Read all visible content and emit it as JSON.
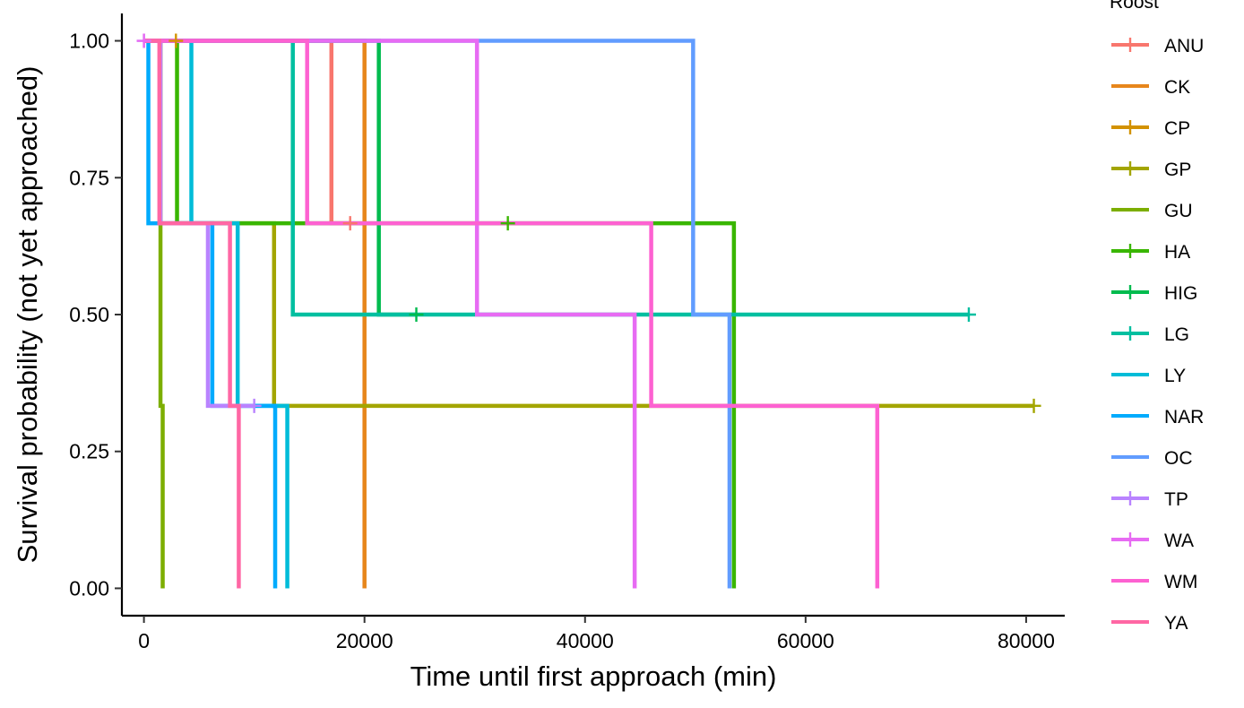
{
  "chart_data": {
    "type": "line",
    "subtype": "step",
    "title": "",
    "xlabel": "Time until first approach (min)",
    "ylabel": "Survival probability (not yet approached)",
    "xlim": [
      -2000,
      83500
    ],
    "ylim": [
      -0.05,
      1.05
    ],
    "xticks": [
      0,
      20000,
      40000,
      60000,
      80000
    ],
    "xtick_labels": [
      "0",
      "20000",
      "40000",
      "60000",
      "80000"
    ],
    "yticks": [
      0,
      0.25,
      0.5,
      0.75,
      1.0
    ],
    "ytick_labels": [
      "0.00",
      "0.25",
      "0.50",
      "0.75",
      "1.00"
    ],
    "grid": false,
    "legend": {
      "title": "Roost",
      "position": "right"
    },
    "series": [
      {
        "name": "ANU",
        "color": "#F8766D",
        "steps": [
          [
            0,
            1
          ],
          [
            17000,
            0.6667
          ]
        ],
        "end": 18700,
        "censors": [
          [
            18700,
            0.6667
          ]
        ]
      },
      {
        "name": "CK",
        "color": "#E7861B",
        "steps": [
          [
            0,
            1
          ],
          [
            20000,
            0
          ]
        ],
        "end": 20000,
        "censors": []
      },
      {
        "name": "CP",
        "color": "#D39200",
        "steps": [
          [
            0,
            1
          ]
        ],
        "end": 2900,
        "censors": [
          [
            2900,
            1
          ]
        ]
      },
      {
        "name": "GP",
        "color": "#A3A500",
        "steps": [
          [
            0,
            1
          ],
          [
            1500,
            0.6667
          ],
          [
            11800,
            0.3333
          ]
        ],
        "end": 80700,
        "censors": [
          [
            80700,
            0.3333
          ]
        ]
      },
      {
        "name": "GU",
        "color": "#7CAE00",
        "steps": [
          [
            0,
            1
          ],
          [
            1500,
            0.6667
          ],
          [
            1500,
            0.3333
          ],
          [
            1700,
            0
          ]
        ],
        "end": 1700,
        "censors": []
      },
      {
        "name": "HA",
        "color": "#39B600",
        "steps": [
          [
            0,
            1
          ],
          [
            3000,
            0.6667
          ],
          [
            53500,
            0
          ]
        ],
        "end": 53500,
        "censors": [
          [
            33000,
            0.6667
          ]
        ]
      },
      {
        "name": "HIG",
        "color": "#00BB4E",
        "steps": [
          [
            0,
            1
          ],
          [
            21300,
            0.5
          ]
        ],
        "end": 24700,
        "censors": [
          [
            24700,
            0.5
          ]
        ]
      },
      {
        "name": "LG",
        "color": "#00BFA0",
        "steps": [
          [
            0,
            1
          ],
          [
            13500,
            0.5
          ]
        ],
        "end": 74800,
        "censors": [
          [
            74800,
            0.5
          ]
        ]
      },
      {
        "name": "LY",
        "color": "#00BCD8",
        "steps": [
          [
            0,
            1
          ],
          [
            4300,
            0.6667
          ],
          [
            8500,
            0.3333
          ],
          [
            13000,
            0
          ]
        ],
        "end": 13000,
        "censors": []
      },
      {
        "name": "NAR",
        "color": "#00ABFD",
        "steps": [
          [
            0,
            1
          ],
          [
            400,
            0.6667
          ],
          [
            6200,
            0.3333
          ],
          [
            11900,
            0
          ]
        ],
        "end": 11900,
        "censors": []
      },
      {
        "name": "OC",
        "color": "#619CFF",
        "steps": [
          [
            0,
            1
          ],
          [
            49800,
            0.5
          ],
          [
            53100,
            0
          ]
        ],
        "end": 53100,
        "censors": []
      },
      {
        "name": "TP",
        "color": "#B983FF",
        "steps": [
          [
            0,
            1
          ],
          [
            1500,
            0.6667
          ],
          [
            5800,
            0.3333
          ]
        ],
        "end": 10000,
        "censors": [
          [
            0,
            1
          ],
          [
            10000,
            0.3333
          ]
        ]
      },
      {
        "name": "WA",
        "color": "#E76BF3",
        "steps": [
          [
            0,
            1
          ],
          [
            30200,
            0.5
          ],
          [
            44500,
            0
          ]
        ],
        "end": 44500,
        "censors": [
          [
            0,
            1
          ]
        ]
      },
      {
        "name": "WM",
        "color": "#FD61D1",
        "steps": [
          [
            0,
            1
          ],
          [
            14800,
            0.6667
          ],
          [
            46000,
            0.3333
          ],
          [
            66500,
            0
          ]
        ],
        "end": 66500,
        "censors": []
      },
      {
        "name": "YA",
        "color": "#FF67A4",
        "steps": [
          [
            0,
            1
          ],
          [
            1400,
            0.6667
          ],
          [
            7800,
            0.3333
          ],
          [
            8600,
            0
          ]
        ],
        "end": 8600,
        "censors": []
      }
    ]
  }
}
